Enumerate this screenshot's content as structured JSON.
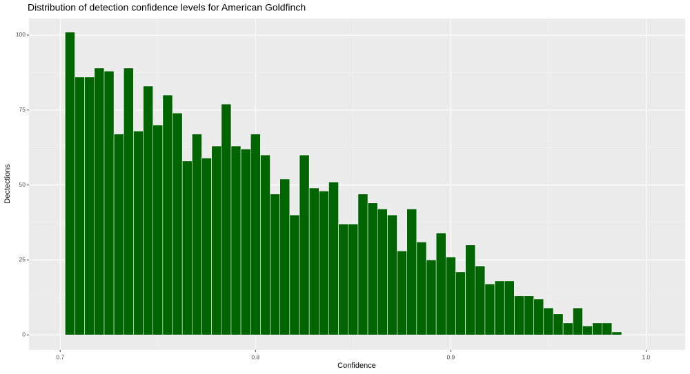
{
  "chart_data": {
    "type": "histogram",
    "title": "Distribution of detection confidence levels for American Goldfinch",
    "xlabel": "Confidence",
    "ylabel": "Dectections",
    "bins": [
      0.7025,
      0.7075,
      0.7125,
      0.7175,
      0.7225,
      0.7275,
      0.7325,
      0.7375,
      0.7425,
      0.7475,
      0.7525,
      0.7575,
      0.7625,
      0.7675,
      0.7725,
      0.7775,
      0.7825,
      0.7875,
      0.7925,
      0.7975,
      0.8025,
      0.8075,
      0.8125,
      0.8175,
      0.8225,
      0.8275,
      0.8325,
      0.8375,
      0.8425,
      0.8475,
      0.8525,
      0.8575,
      0.8625,
      0.8675,
      0.8725,
      0.8775,
      0.8825,
      0.8875,
      0.8925,
      0.8975,
      0.9025,
      0.9075,
      0.9125,
      0.9175,
      0.9225,
      0.9275,
      0.9325,
      0.9375,
      0.9425,
      0.9475,
      0.9525,
      0.9575,
      0.9625,
      0.9675,
      0.9725,
      0.9775,
      0.9825,
      0.9875
    ],
    "values": [
      101,
      86,
      86,
      89,
      88,
      67,
      89,
      68,
      83,
      70,
      80,
      74,
      58,
      67,
      59,
      63,
      77,
      63,
      62,
      67,
      60,
      47,
      52,
      40,
      60,
      49,
      48,
      51,
      37,
      37,
      47,
      44,
      42,
      40,
      28,
      42,
      31,
      25,
      34,
      26,
      21,
      30,
      23,
      17,
      18,
      18,
      13,
      13,
      12,
      9,
      7,
      4,
      9,
      3,
      4,
      4,
      1
    ],
    "color": "#006400",
    "xlim": [
      0.684,
      1.02
    ],
    "ylim": [
      -5,
      105.5
    ],
    "xticks": [
      0.7,
      0.8,
      0.9,
      {
        "value": 1,
        "label": "1.0"
      }
    ],
    "yticks": [
      0,
      25,
      50,
      75,
      100
    ],
    "grid": true
  }
}
